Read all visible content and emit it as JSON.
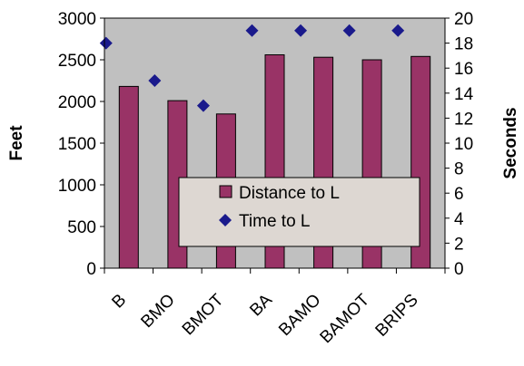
{
  "chart_data": {
    "type": "bar",
    "categories": [
      "B",
      "BMO",
      "BMOT",
      "BA",
      "BAMO",
      "BAMOT",
      "BRIPS"
    ],
    "series": [
      {
        "name": "Distance to L",
        "type": "bar",
        "axis": "left",
        "values": [
          2180,
          2010,
          1850,
          2560,
          2530,
          2500,
          2540
        ]
      },
      {
        "name": "Time to L",
        "type": "scatter",
        "axis": "right",
        "values": [
          18,
          15,
          13,
          19,
          19,
          19,
          19
        ]
      }
    ],
    "ylabel": "Feet",
    "y2label": "Seconds",
    "ylim": [
      0,
      3000
    ],
    "y2lim": [
      0,
      20
    ],
    "yticks": [
      0,
      500,
      1000,
      1500,
      2000,
      2500,
      3000
    ],
    "y2ticks": [
      0,
      2,
      4,
      6,
      8,
      10,
      12,
      14,
      16,
      18,
      20
    ],
    "legend": {
      "placement": "inside-bottom-right",
      "entries": [
        "Distance to L",
        "Time to L"
      ]
    },
    "grid": false
  },
  "colors": {
    "plot_background": "#c0c0c0",
    "bar_fill": "#993366",
    "marker_fill": "#1a1a8c",
    "legend_background": "#ddd7d2"
  }
}
